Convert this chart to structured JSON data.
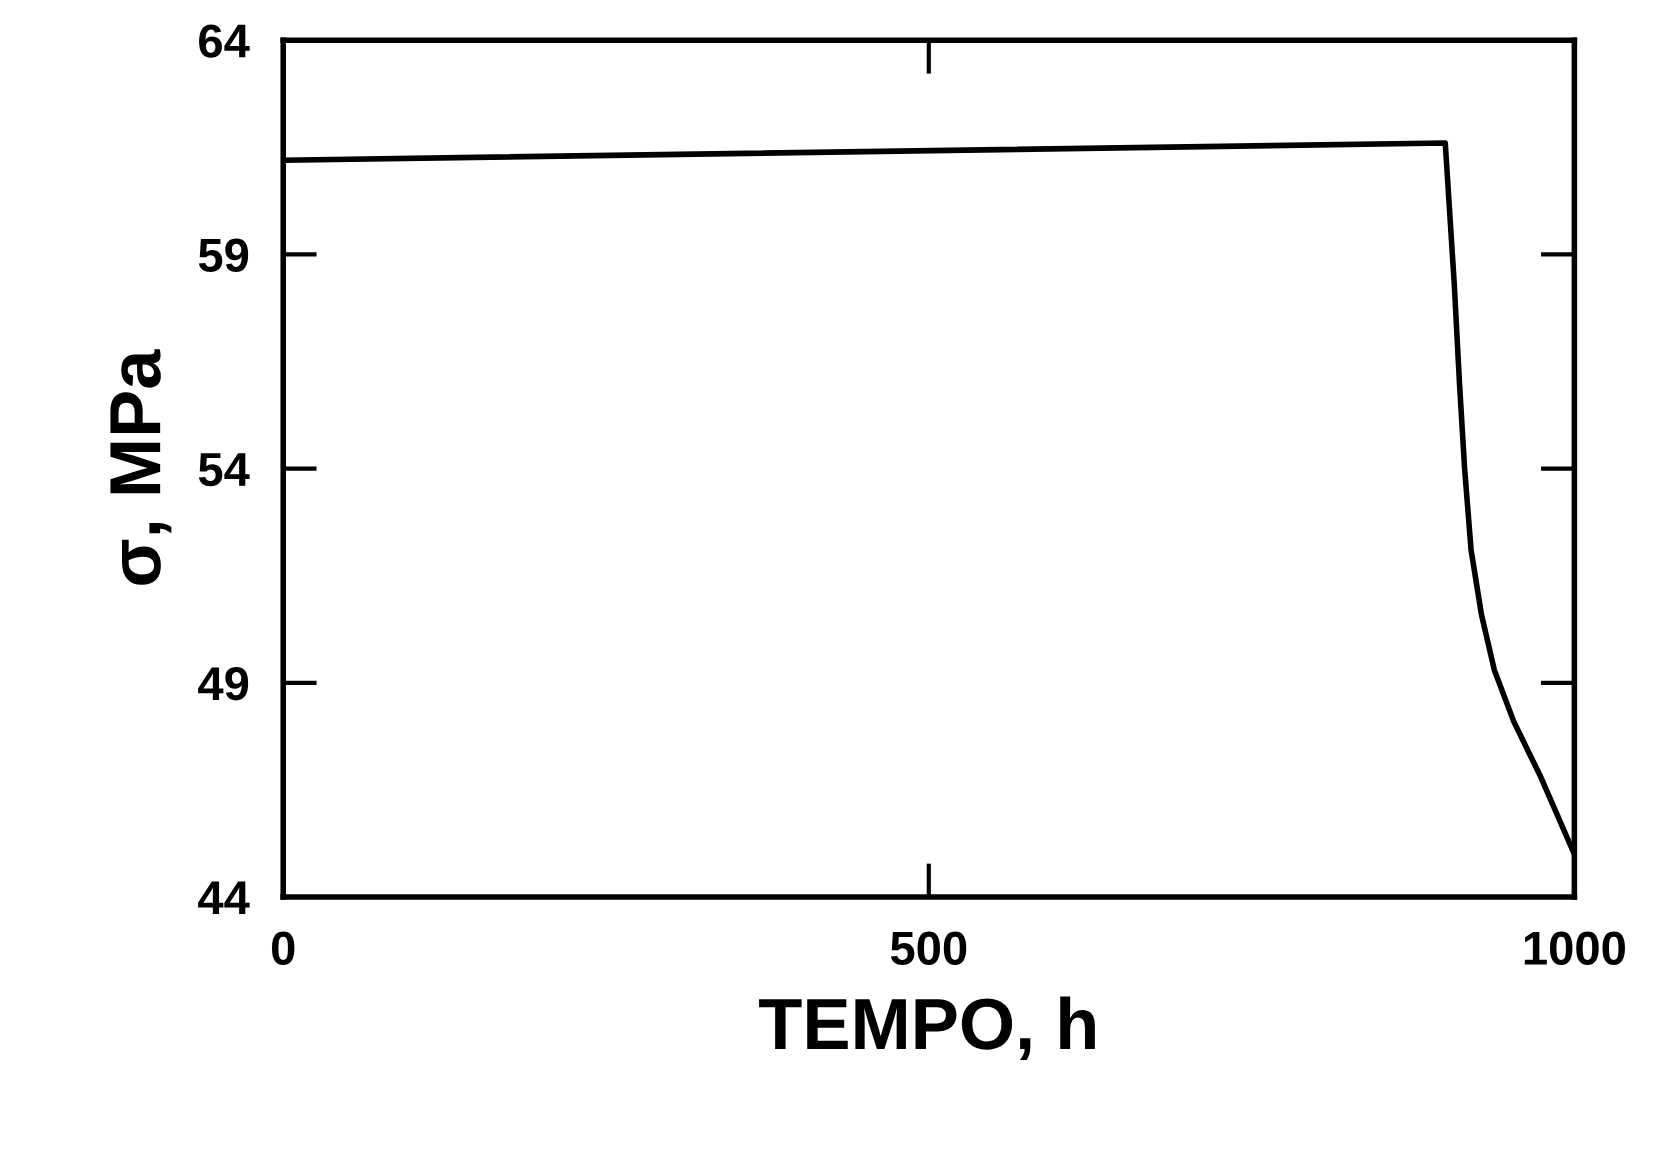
{
  "chart_data": {
    "type": "line",
    "xlabel": "TEMPO, h",
    "ylabel": "σ, MPa",
    "series": [
      {
        "color": "#000000",
        "x": [
          0,
          900,
          907,
          911,
          915,
          920,
          928,
          938,
          953,
          974,
          1000
        ],
        "values": [
          61.2,
          61.6,
          58.3,
          56.0,
          54.0,
          52.1,
          50.6,
          49.3,
          48.1,
          46.8,
          45.0
        ]
      }
    ],
    "xlim": [
      0,
      1000
    ],
    "xticks": [
      0,
      500,
      1000
    ],
    "ylim": [
      44,
      64
    ],
    "yticks": [
      44,
      49,
      54,
      59,
      64
    ],
    "grid": false,
    "legend": false,
    "marker": "none",
    "line_style": "solid"
  }
}
